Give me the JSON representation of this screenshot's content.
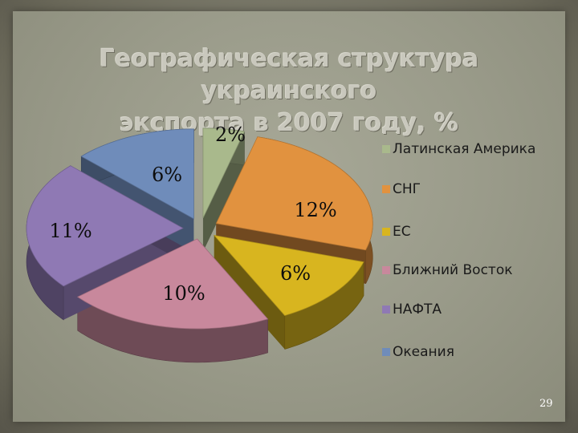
{
  "title_line1": "Географическая структура украинского",
  "title_line2": "экспорта в 2007 году, %",
  "page_number": "29",
  "chart_data": {
    "type": "pie",
    "title": "Географическая структура украинского экспорта в 2007 году, %",
    "three_d": true,
    "exploded": true,
    "legend_position": "right",
    "slices": [
      {
        "label": "Латинская Америка",
        "value": 2,
        "value_label": "2%",
        "color": "#a9b98c"
      },
      {
        "label": "СНГ",
        "value": 12,
        "value_label": "12%",
        "color": "#e1923f"
      },
      {
        "label": "ЕС",
        "value": 6,
        "value_label": "6%",
        "color": "#d8b51f"
      },
      {
        "label": "Ближний Восток",
        "value": 10,
        "value_label": "10%",
        "color": "#c8889c"
      },
      {
        "label": "НАФТА",
        "value": 11,
        "value_label": "11%",
        "color": "#8f79b4"
      },
      {
        "label": "Океания",
        "value": 6,
        "value_label": "6%",
        "color": "#6f8cba"
      }
    ]
  }
}
